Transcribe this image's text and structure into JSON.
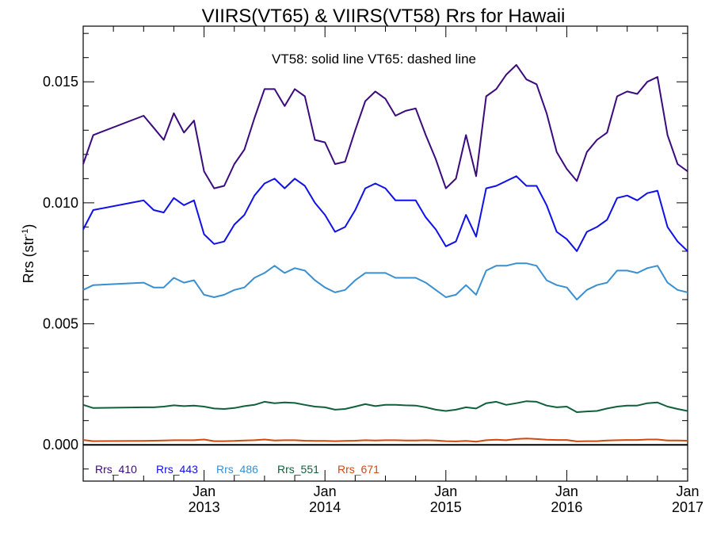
{
  "chart_data": {
    "type": "line",
    "title": "VIIRS(VT65) & VIIRS(VT58)  Rrs for Hawaii",
    "subtitle": "VT58: solid line   VT65: dashed line",
    "ylabel": "Rrs (str",
    "ylabel_sup": "-1",
    "ylabel_close": ")",
    "xlim": [
      "2012-01",
      "2017-01"
    ],
    "ylim": [
      -0.0015,
      0.0173
    ],
    "y_ticks": [
      0.0,
      0.005,
      0.01,
      0.015
    ],
    "y_tick_labels": [
      "0.000",
      "0.005",
      "0.010",
      "0.015"
    ],
    "x_ticks": [
      {
        "date": "2013-01",
        "month": "Jan",
        "year": "2013"
      },
      {
        "date": "2014-01",
        "month": "Jan",
        "year": "2014"
      },
      {
        "date": "2015-01",
        "month": "Jan",
        "year": "2015"
      },
      {
        "date": "2016-01",
        "month": "Jan",
        "year": "2016"
      },
      {
        "date": "2017-01",
        "month": "Jan",
        "year": "2017"
      }
    ],
    "zero_line": true,
    "legend_position": "bottom-left",
    "x": [
      "2012-01",
      "2012-02",
      "2012-07",
      "2012-08",
      "2012-09",
      "2012-10",
      "2012-11",
      "2012-12",
      "2013-01",
      "2013-02",
      "2013-03",
      "2013-04",
      "2013-05",
      "2013-06",
      "2013-07",
      "2013-08",
      "2013-09",
      "2013-10",
      "2013-11",
      "2013-12",
      "2014-01",
      "2014-02",
      "2014-03",
      "2014-04",
      "2014-05",
      "2014-06",
      "2014-07",
      "2014-08",
      "2014-09",
      "2014-10",
      "2014-11",
      "2014-12",
      "2015-01",
      "2015-02",
      "2015-03",
      "2015-04",
      "2015-05",
      "2015-06",
      "2015-07",
      "2015-08",
      "2015-09",
      "2015-10",
      "2015-11",
      "2015-12",
      "2016-01",
      "2016-02",
      "2016-03",
      "2016-04",
      "2016-05",
      "2016-06",
      "2016-07",
      "2016-08",
      "2016-09",
      "2016-10",
      "2016-11",
      "2016-12",
      "2017-01"
    ],
    "series": [
      {
        "name": "Rrs_410",
        "color": "#3b0a7d",
        "values": [
          0.0116,
          0.0128,
          0.0136,
          0.0131,
          0.0126,
          0.0137,
          0.0129,
          0.0134,
          0.0113,
          0.0106,
          0.0107,
          0.0116,
          0.0122,
          0.0135,
          0.0147,
          0.0147,
          0.014,
          0.0147,
          0.0144,
          0.0126,
          0.0125,
          0.0116,
          0.0117,
          0.013,
          0.0142,
          0.0146,
          0.0143,
          0.0136,
          0.0138,
          0.0139,
          0.0128,
          0.0118,
          0.0106,
          0.011,
          0.0128,
          0.0111,
          0.0144,
          0.0147,
          0.0153,
          0.0157,
          0.0151,
          0.0149,
          0.0137,
          0.0121,
          0.0114,
          0.0109,
          0.0121,
          0.0126,
          0.0129,
          0.0144,
          0.0146,
          0.0145,
          0.015,
          0.0152,
          0.0128,
          0.0116,
          0.0113
        ]
      },
      {
        "name": "Rrs_443",
        "color": "#1010e8",
        "values": [
          0.0089,
          0.0097,
          0.0101,
          0.0097,
          0.0096,
          0.0102,
          0.0099,
          0.0101,
          0.0087,
          0.0083,
          0.0084,
          0.0091,
          0.0095,
          0.0103,
          0.0108,
          0.011,
          0.0106,
          0.011,
          0.0107,
          0.01,
          0.0095,
          0.0088,
          0.009,
          0.0097,
          0.0106,
          0.0108,
          0.0106,
          0.0101,
          0.0101,
          0.0101,
          0.0094,
          0.0089,
          0.0082,
          0.0084,
          0.0095,
          0.0086,
          0.0106,
          0.0107,
          0.0109,
          0.0111,
          0.0107,
          0.0107,
          0.0099,
          0.0088,
          0.0085,
          0.008,
          0.0088,
          0.009,
          0.0093,
          0.0102,
          0.0103,
          0.0101,
          0.0104,
          0.0105,
          0.009,
          0.0084,
          0.008
        ]
      },
      {
        "name": "Rrs_486",
        "color": "#3a8fd0",
        "values": [
          0.0064,
          0.0066,
          0.0067,
          0.0065,
          0.0065,
          0.0069,
          0.0067,
          0.0068,
          0.0062,
          0.0061,
          0.0062,
          0.0064,
          0.0065,
          0.0069,
          0.0071,
          0.0074,
          0.0071,
          0.0073,
          0.0072,
          0.0068,
          0.0065,
          0.0063,
          0.0064,
          0.0068,
          0.0071,
          0.0071,
          0.0071,
          0.0069,
          0.0069,
          0.0069,
          0.0067,
          0.0064,
          0.0061,
          0.0062,
          0.0066,
          0.0062,
          0.0072,
          0.0074,
          0.0074,
          0.0075,
          0.0075,
          0.0074,
          0.0068,
          0.0066,
          0.0065,
          0.006,
          0.0064,
          0.0066,
          0.0067,
          0.0072,
          0.0072,
          0.0071,
          0.0073,
          0.0074,
          0.0067,
          0.0064,
          0.0063
        ]
      },
      {
        "name": "Rrs_551",
        "color": "#10603a",
        "values": [
          0.00165,
          0.00152,
          0.00155,
          0.00155,
          0.00158,
          0.00163,
          0.0016,
          0.00162,
          0.00158,
          0.0015,
          0.00148,
          0.00152,
          0.0016,
          0.00165,
          0.00178,
          0.00172,
          0.00175,
          0.00173,
          0.00165,
          0.00158,
          0.00155,
          0.00145,
          0.00148,
          0.00158,
          0.00168,
          0.0016,
          0.00165,
          0.00165,
          0.00163,
          0.00162,
          0.00155,
          0.00145,
          0.0014,
          0.00145,
          0.00155,
          0.0015,
          0.00172,
          0.00178,
          0.00165,
          0.00172,
          0.0018,
          0.00178,
          0.00162,
          0.00155,
          0.00158,
          0.00135,
          0.00138,
          0.0014,
          0.0015,
          0.00158,
          0.00162,
          0.00162,
          0.00172,
          0.00175,
          0.00158,
          0.00148,
          0.0014
        ]
      },
      {
        "name": "Rrs_671",
        "color": "#d04a10",
        "values": [
          0.0002,
          0.00015,
          0.00016,
          0.00017,
          0.00018,
          0.00019,
          0.00019,
          0.00019,
          0.00022,
          0.00015,
          0.00015,
          0.00016,
          0.00018,
          0.00019,
          0.00022,
          0.00018,
          0.00019,
          0.00019,
          0.00017,
          0.00016,
          0.00016,
          0.00015,
          0.00016,
          0.00017,
          0.00019,
          0.00018,
          0.00019,
          0.00019,
          0.00018,
          0.00018,
          0.00019,
          0.00018,
          0.00015,
          0.00014,
          0.00016,
          0.00013,
          0.00019,
          0.00021,
          0.00019,
          0.00024,
          0.00026,
          0.00024,
          0.00021,
          0.0002,
          0.0002,
          0.00014,
          0.00015,
          0.00015,
          0.00018,
          0.00019,
          0.0002,
          0.0002,
          0.00022,
          0.00022,
          0.00018,
          0.00018,
          0.00017
        ]
      }
    ]
  }
}
